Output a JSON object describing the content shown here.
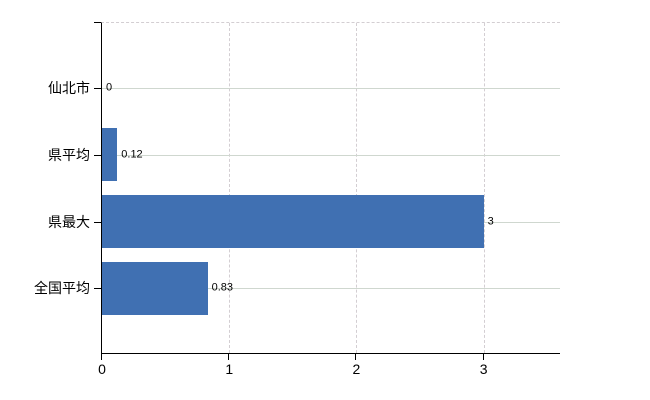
{
  "chart_data": {
    "type": "bar",
    "orientation": "horizontal",
    "title": "",
    "xlabel": "",
    "ylabel": "",
    "categories": [
      "仙北市",
      "県平均",
      "県最大",
      "全国平均"
    ],
    "values": [
      0,
      0.12,
      3,
      0.83
    ],
    "value_labels": [
      "0",
      "0.12",
      "3",
      "0.83"
    ],
    "x_tick_values": [
      0,
      1,
      2,
      3
    ],
    "x_tick_labels": [
      "0",
      "1",
      "2",
      "3"
    ],
    "xlim": [
      0,
      3.6
    ],
    "grid": true,
    "legend": false,
    "colors": {
      "bar": "#4070b2",
      "h_gridline": "#cfd7cf",
      "v_gridline": "#d3ced2",
      "axis": "#000000",
      "text": "#000000",
      "background": "#ffffff"
    }
  }
}
